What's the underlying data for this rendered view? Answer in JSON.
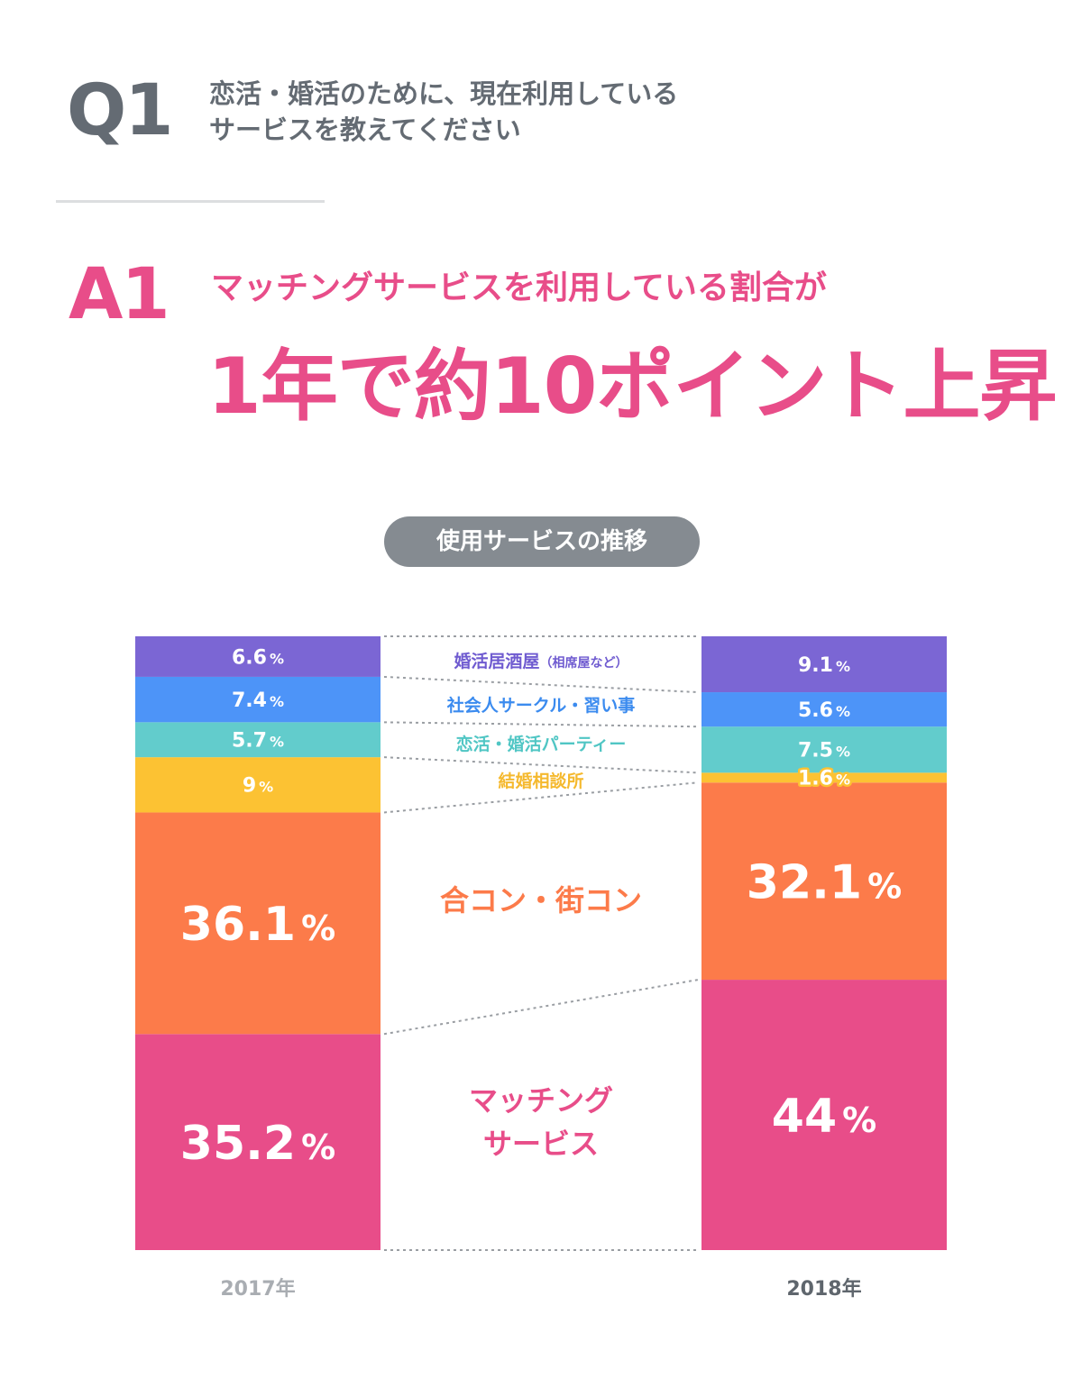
{
  "header": {
    "q_label": "Q1",
    "q_text_line1": "恋活・婚活のために、現在利用している",
    "q_text_line2": "サービスを教えてください",
    "a_label": "A1",
    "a_sub": "マッチングサービスを利用している割合が",
    "a_main": "1年で約10ポイント上昇"
  },
  "chart_data": {
    "type": "bar",
    "title": "使用サービスの推移",
    "stacked": true,
    "categories": [
      "2017年",
      "2018年"
    ],
    "series": [
      {
        "name": "マッチングサービス",
        "name_lines": [
          "マッチング",
          "サービス"
        ],
        "values": [
          35.2,
          44
        ],
        "labels": [
          "35.2",
          "44"
        ],
        "color": "#e84d89",
        "label_color": "#e84d89"
      },
      {
        "name": "合コン・街コン",
        "values": [
          36.1,
          32.1
        ],
        "labels": [
          "36.1",
          "32.1"
        ],
        "color": "#fc7b4a",
        "label_color": "#fc7b4a"
      },
      {
        "name": "結婚相談所",
        "values": [
          9,
          1.6
        ],
        "labels": [
          "9",
          "1.6"
        ],
        "color": "#fcc233",
        "label_color": "#f5b92e"
      },
      {
        "name": "恋活・婚活パーティー",
        "values": [
          5.7,
          7.5
        ],
        "labels": [
          "5.7",
          "7.5"
        ],
        "color": "#62cccc",
        "label_color": "#50c6c4"
      },
      {
        "name": "社会人サークル・習い事",
        "values": [
          7.4,
          5.6
        ],
        "labels": [
          "7.4",
          "5.6"
        ],
        "color": "#4d94f8",
        "label_color": "#3b8bef"
      },
      {
        "name": "婚活居酒屋",
        "name_suffix": "（相席屋など）",
        "values": [
          6.6,
          9.1
        ],
        "labels": [
          "6.6",
          "9.1"
        ],
        "color": "#7b66d4",
        "label_color": "#6f5bd0"
      }
    ],
    "percent_sign": "%",
    "year_colors": [
      "#a9adb2",
      "#5f666d"
    ]
  }
}
